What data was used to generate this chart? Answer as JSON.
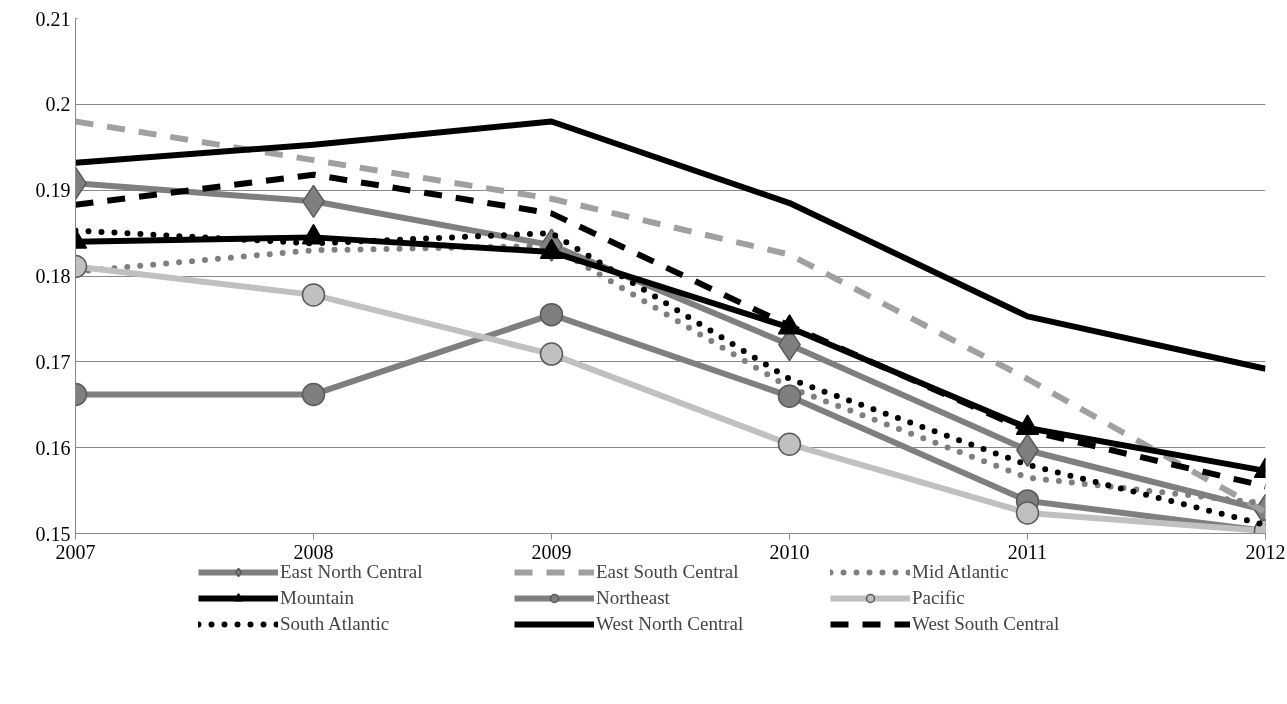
{
  "chart_data": {
    "type": "line",
    "categories": [
      "2007",
      "2008",
      "2009",
      "2010",
      "2011",
      "2012"
    ],
    "ylim": [
      0.15,
      0.21
    ],
    "yticks": [
      0.15,
      0.16,
      0.17,
      0.18,
      0.19,
      0.2,
      0.21
    ],
    "grid": "y",
    "legend": "bottom",
    "series": [
      {
        "name": "East North Central",
        "color": "#7f7f7f",
        "marker": "diamond",
        "line_style": "solid",
        "values": [
          0.1908,
          0.1887,
          0.1836,
          0.172,
          0.1597,
          0.1527
        ]
      },
      {
        "name": "East South Central",
        "color": "#a0a0a0",
        "marker": "none",
        "line_style": "dashed",
        "values": [
          0.198,
          0.1935,
          0.189,
          0.1825,
          0.168,
          0.1525
        ]
      },
      {
        "name": "Mid Atlantic",
        "color": "#7f7f7f",
        "marker": "none",
        "line_style": "dotted",
        "values": [
          0.1805,
          0.183,
          0.1835,
          0.167,
          0.1565,
          0.1535
        ]
      },
      {
        "name": "Mountain",
        "color": "#000000",
        "marker": "triangle",
        "line_style": "solid",
        "values": [
          0.184,
          0.1845,
          0.1828,
          0.174,
          0.1623,
          0.1573
        ]
      },
      {
        "name": "Northeast",
        "color": "#7f7f7f",
        "marker": "circle",
        "line_style": "solid",
        "values": [
          0.1662,
          0.1662,
          0.1755,
          0.166,
          0.1538,
          0.1503
        ]
      },
      {
        "name": "Pacific",
        "color": "#c0c0c0",
        "marker": "circle",
        "line_style": "solid",
        "values": [
          0.1811,
          0.1778,
          0.1709,
          0.1604,
          0.1524,
          0.1503
        ]
      },
      {
        "name": "South Atlantic",
        "color": "#000000",
        "marker": "none",
        "line_style": "dotted",
        "values": [
          0.1853,
          0.1838,
          0.185,
          0.168,
          0.158,
          0.151
        ]
      },
      {
        "name": "West North Central",
        "color": "#000000",
        "marker": "none",
        "line_style": "solid",
        "values": [
          0.1932,
          0.1953,
          0.198,
          0.1885,
          0.1753,
          0.1692
        ]
      },
      {
        "name": "West South Central",
        "color": "#000000",
        "marker": "none",
        "line_style": "dashed",
        "values": [
          0.1883,
          0.1918,
          0.1873,
          0.1742,
          0.162,
          0.1555
        ]
      }
    ]
  }
}
